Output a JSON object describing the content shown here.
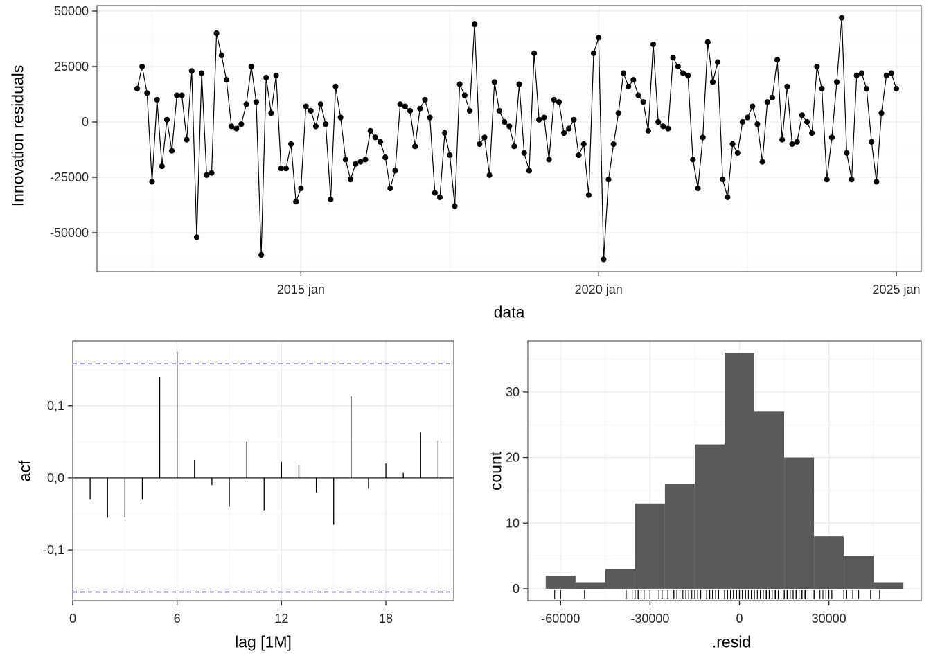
{
  "page": {
    "background": "#ffffff"
  },
  "theme": {
    "panel_border": "#6f6f6f",
    "grid_major": "#e9e9e9",
    "grid_minor": "#f4f4f4",
    "tick_color": "#333333",
    "tick_text_color": "#262626",
    "series_color": "#000000"
  },
  "chart_data": [
    {
      "type": "line",
      "name": "innovation-residuals-time-series",
      "xlabel": "data",
      "ylabel": "Innovation residuals",
      "x_tick_labels": [
        "2015 jan",
        "2020 jan",
        "2025 jan"
      ],
      "x_tick_month_index": [
        33,
        93,
        153
      ],
      "x_minor_month_index": [
        3,
        63,
        123
      ],
      "ylim": [
        -67500,
        52500
      ],
      "y_ticks": [
        -50000,
        -25000,
        0,
        25000,
        50000
      ],
      "y_tick_labels": [
        "-50000",
        "-25000",
        "0",
        "25000",
        "50000"
      ],
      "y_minor": [
        -62500,
        -37500,
        -12500,
        12500,
        37500
      ],
      "values": [
        15000,
        25000,
        13000,
        -27000,
        10000,
        -20000,
        1000,
        -13000,
        12000,
        12000,
        -8000,
        23000,
        -52000,
        22000,
        -24000,
        -23000,
        40000,
        30000,
        19000,
        -2000,
        -3000,
        -1000,
        8000,
        25000,
        9000,
        -60000,
        20000,
        4000,
        21000,
        -21000,
        -21000,
        -10000,
        -36000,
        -30000,
        7000,
        5000,
        -2000,
        8000,
        -1000,
        -35000,
        16000,
        2000,
        -17000,
        -26000,
        -19000,
        -18000,
        -17000,
        -4000,
        -7000,
        -9000,
        -16000,
        -30000,
        -22000,
        8000,
        7000,
        5000,
        -11000,
        6000,
        10000,
        2000,
        -32000,
        -34000,
        -5000,
        -15000,
        -38000,
        17000,
        12000,
        5000,
        44000,
        -10000,
        -7000,
        -24000,
        18000,
        5000,
        0,
        -2000,
        -11000,
        17000,
        -14000,
        -22000,
        31000,
        1000,
        2000,
        -17000,
        10000,
        9000,
        -5000,
        -3000,
        1000,
        -15000,
        -10000,
        -33000,
        31000,
        38000,
        -62000,
        -26000,
        -10000,
        4000,
        22000,
        16000,
        19000,
        12000,
        9000,
        -4000,
        35000,
        0,
        -2000,
        -3000,
        29000,
        25000,
        22000,
        21000,
        -17000,
        -30000,
        -7000,
        36000,
        18000,
        27000,
        -26000,
        -34000,
        -10000,
        -14000,
        0,
        2000,
        7000,
        -1000,
        -18000,
        9000,
        11000,
        28000,
        -8000,
        16000,
        -10000,
        -9000,
        3000,
        0,
        -5000,
        25000,
        15000,
        -26000,
        -7000,
        18000,
        47000,
        -14000,
        -26000,
        21000,
        22000,
        15000,
        -9000,
        -27000,
        4000,
        21000,
        22000,
        15000
      ]
    },
    {
      "type": "bar",
      "name": "acf",
      "xlabel": "lag [1M]",
      "ylabel": "acf",
      "lags": [
        1,
        2,
        3,
        4,
        5,
        6,
        7,
        8,
        9,
        10,
        11,
        12,
        13,
        14,
        15,
        16,
        17,
        18,
        19,
        20,
        21
      ],
      "values": [
        -0.03,
        -0.055,
        -0.055,
        -0.03,
        0.14,
        0.175,
        0.025,
        -0.01,
        -0.04,
        0.05,
        -0.045,
        0.022,
        0.018,
        -0.02,
        -0.065,
        0.113,
        -0.015,
        0.02,
        0.007,
        0.063,
        0.052
      ],
      "conf_bound": 0.158,
      "conf_color": "#2222cc",
      "xlim": [
        0,
        21.9
      ],
      "x_ticks": [
        0,
        6,
        12,
        18
      ],
      "x_tick_labels": [
        "0",
        "6",
        "12",
        "18"
      ],
      "x_minor": [
        3,
        9,
        15,
        21
      ],
      "ylim": [
        -0.17,
        0.19
      ],
      "y_ticks": [
        -0.1,
        0.0,
        0.1
      ],
      "y_tick_labels": [
        "-0,1",
        "0,0",
        "0,1"
      ],
      "y_minor": [
        -0.15,
        -0.05,
        0.05,
        0.15
      ]
    },
    {
      "type": "histogram",
      "name": "residual-histogram",
      "xlabel": ".resid",
      "ylabel": "count",
      "bar_color": "#595959",
      "bin_width": 10000,
      "bin_centers": [
        -60000,
        -50000,
        -40000,
        -30000,
        -20000,
        -10000,
        0,
        10000,
        20000,
        30000,
        40000,
        50000
      ],
      "counts": [
        2,
        1,
        3,
        13,
        16,
        22,
        36,
        27,
        20,
        8,
        5,
        1
      ],
      "xlim": [
        -71000,
        61000
      ],
      "x_ticks": [
        -60000,
        -30000,
        0,
        30000
      ],
      "x_tick_labels": [
        "-60000",
        "-30000",
        "0",
        "30000"
      ],
      "x_minor": [
        -45000,
        -15000,
        15000,
        45000
      ],
      "ylim": [
        -1.8,
        37.8
      ],
      "y_ticks": [
        0,
        10,
        20,
        30
      ],
      "y_tick_labels": [
        "0",
        "10",
        "20",
        "30"
      ],
      "y_minor": [
        5,
        15,
        25,
        35
      ],
      "rug_source": "residual values from time-series panel"
    }
  ]
}
